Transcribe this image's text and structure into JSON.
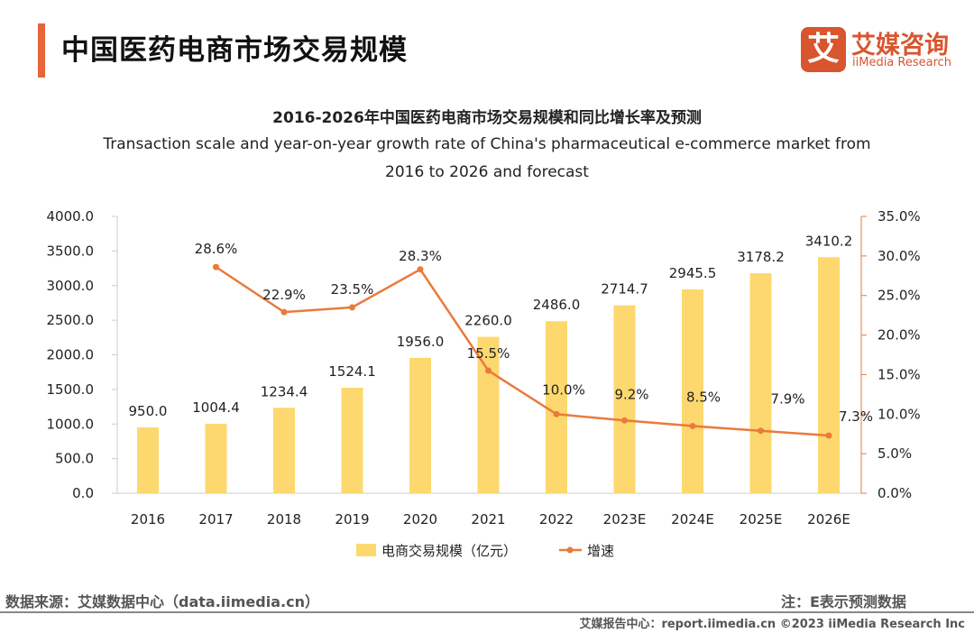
{
  "header": {
    "title": "中国医药电商市场交易规模",
    "logo_cn": "艾媒咨询",
    "logo_en": "iiMedia Research",
    "logo_mark": "艾"
  },
  "colors": {
    "accent": "#e8643a",
    "bar": "#fcd86e",
    "line": "#e97b3c"
  },
  "chart_data": {
    "type": "bar+line",
    "title": "2016-2026年中国医药电商市场交易规模和同比增长率及预测",
    "subtitle_line1": "Transaction scale and year-on-year growth rate of China's pharmaceutical e-commerce market from",
    "subtitle_line2": "2016 to 2026 and forecast",
    "categories": [
      "2016",
      "2017",
      "2018",
      "2019",
      "2020",
      "2021",
      "2022",
      "2023E",
      "2024E",
      "2025E",
      "2026E"
    ],
    "series": [
      {
        "name": "电商交易规模（亿元）",
        "type": "bar",
        "axis": "left",
        "values": [
          950.0,
          1004.4,
          1234.4,
          1524.1,
          1956.0,
          2260.0,
          2486.0,
          2714.7,
          2945.5,
          3178.2,
          3410.2
        ],
        "labels": [
          "950.0",
          "1004.4",
          "1234.4",
          "1524.1",
          "1956.0",
          "2260.0",
          "2486.0",
          "2714.7",
          "2945.5",
          "3178.2",
          "3410.2"
        ]
      },
      {
        "name": "增速",
        "type": "line",
        "axis": "right",
        "values": [
          null,
          28.6,
          22.9,
          23.5,
          28.3,
          15.5,
          10.0,
          9.2,
          8.5,
          7.9,
          7.3
        ],
        "labels": [
          "",
          "28.6%",
          "22.9%",
          "23.5%",
          "28.3%",
          "15.5%",
          "10.0%",
          "9.2%",
          "8.5%",
          "7.9%",
          "7.3%"
        ]
      }
    ],
    "yleft": {
      "lim": [
        0,
        4000
      ],
      "ticks": [
        "0.0",
        "500.0",
        "1000.0",
        "1500.0",
        "2000.0",
        "2500.0",
        "3000.0",
        "3500.0",
        "4000.0"
      ]
    },
    "yright": {
      "lim": [
        0,
        35
      ],
      "ticks": [
        "0.0%",
        "5.0%",
        "10.0%",
        "15.0%",
        "20.0%",
        "25.0%",
        "30.0%",
        "35.0%"
      ]
    },
    "legend": "bottom-center",
    "grid": false
  },
  "footer": {
    "source": "数据来源：艾媒数据中心（data.iimedia.cn）",
    "note": "注：E表示预测数据",
    "copyright": "艾媒报告中心：report.iimedia.cn  ©2023  iiMedia Research  Inc"
  }
}
